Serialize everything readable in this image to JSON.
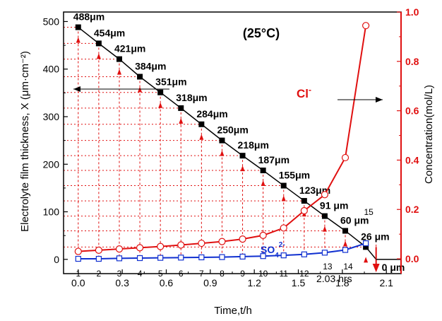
{
  "chart_data": {
    "type": "line",
    "title": "(25°C)",
    "xlabel": "Time,t/h",
    "ylabel_left": "Electrolyte film thickness, X (μm·cm⁻²)",
    "ylabel_right": "Concentration(mol/L)",
    "xlim": [
      -0.1,
      2.2
    ],
    "ylim_left": [
      -30,
      520
    ],
    "ylim_right": [
      -0.06,
      1.0
    ],
    "x_ticks": [
      "0.0",
      "0.3",
      "0.6",
      "0.9",
      "1.2",
      "1.5",
      "1.8",
      "2.1"
    ],
    "y_ticks_left": [
      "0",
      "100",
      "200",
      "300",
      "400",
      "500"
    ],
    "y_ticks_right": [
      "0.0",
      "0.2",
      "0.4",
      "0.6",
      "0.8",
      "1.0"
    ],
    "thickness": {
      "x": [
        0.0,
        0.14,
        0.28,
        0.42,
        0.56,
        0.7,
        0.84,
        0.98,
        1.12,
        1.26,
        1.4,
        1.54,
        1.68,
        1.82,
        1.96,
        2.03
      ],
      "values": [
        488,
        454,
        421,
        384,
        351,
        318,
        284,
        250,
        218,
        187,
        155,
        123,
        91,
        60,
        26,
        0
      ],
      "labels": [
        "488μm",
        "454μm",
        "421μm",
        "384μm",
        "351μm",
        "318μm",
        "284μm",
        "250μm",
        "218μm",
        "187μm",
        "155μm",
        "123μm",
        "91 μm",
        "60 μm",
        "26 μm",
        "0 μm"
      ]
    },
    "series": [
      {
        "name": "Cl⁻",
        "color": "#e01010",
        "marker": "circle",
        "x": [
          0.0,
          0.14,
          0.28,
          0.42,
          0.56,
          0.7,
          0.84,
          0.98,
          1.12,
          1.26,
          1.4,
          1.54,
          1.68,
          1.82,
          1.96
        ],
        "values": [
          0.03,
          0.035,
          0.04,
          0.045,
          0.05,
          0.056,
          0.063,
          0.07,
          0.08,
          0.095,
          0.125,
          0.195,
          0.26,
          0.41,
          0.945
        ]
      },
      {
        "name": "SO₄²⁻",
        "color": "#1030d0",
        "marker": "square",
        "x": [
          0.0,
          0.14,
          0.28,
          0.42,
          0.56,
          0.7,
          0.84,
          0.98,
          1.12,
          1.26,
          1.4,
          1.54,
          1.68,
          1.82,
          1.96
        ],
        "values": [
          0.0,
          0.0,
          0.002,
          0.003,
          0.004,
          0.005,
          0.006,
          0.007,
          0.009,
          0.011,
          0.014,
          0.018,
          0.025,
          0.036,
          0.063
        ]
      }
    ],
    "indices": [
      "1",
      "2",
      "3",
      "4",
      "5",
      "6",
      "7",
      "8",
      "9",
      "10",
      "11",
      "12",
      "13",
      "14",
      "15"
    ],
    "annotations": {
      "cl_label": "Cl",
      "cl_sup": "-",
      "so4_label": "SO",
      "so4_sub": "4",
      "so4_sup": "2-",
      "end_time": "2.03 hrs"
    }
  }
}
